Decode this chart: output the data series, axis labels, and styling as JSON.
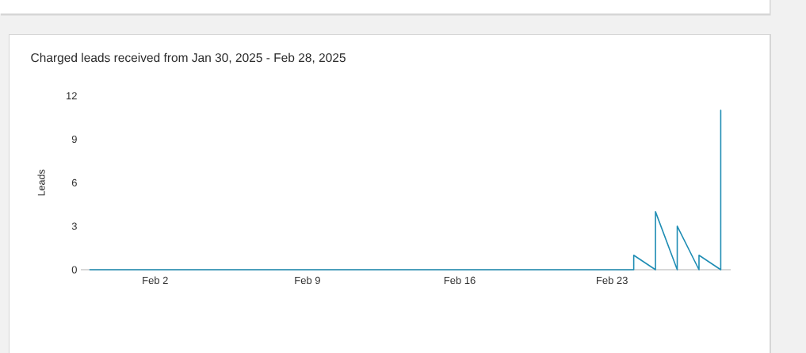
{
  "chart_data": {
    "type": "line",
    "title": "Charged leads received from Jan 30, 2025 - Feb 28, 2025",
    "ylabel": "Leads",
    "x": [
      "2025-01-30",
      "2025-01-31",
      "2025-02-01",
      "2025-02-02",
      "2025-02-03",
      "2025-02-04",
      "2025-02-05",
      "2025-02-06",
      "2025-02-07",
      "2025-02-08",
      "2025-02-09",
      "2025-02-10",
      "2025-02-11",
      "2025-02-12",
      "2025-02-13",
      "2025-02-14",
      "2025-02-15",
      "2025-02-16",
      "2025-02-17",
      "2025-02-18",
      "2025-02-19",
      "2025-02-20",
      "2025-02-21",
      "2025-02-22",
      "2025-02-23",
      "2025-02-24",
      "2025-02-24",
      "2025-02-25",
      "2025-02-25",
      "2025-02-26",
      "2025-02-26",
      "2025-02-27",
      "2025-02-27",
      "2025-02-28",
      "2025-02-28"
    ],
    "series": [
      {
        "color": "#1f8db4",
        "values": [
          0,
          0,
          0,
          0,
          0,
          0,
          0,
          0,
          0,
          0,
          0,
          0,
          0,
          0,
          0,
          0,
          0,
          0,
          0,
          0,
          0,
          0,
          0,
          0,
          0,
          0,
          1,
          0,
          4,
          0,
          3,
          0,
          1,
          0,
          11
        ]
      }
    ],
    "xlim": [
      "2025-01-29T14:00",
      "2025-02-28T11:00"
    ],
    "ylim": [
      0,
      12
    ],
    "xticks": [
      {
        "value": "2025-02-02",
        "label": "Feb 2"
      },
      {
        "value": "2025-02-09",
        "label": "Feb 9"
      },
      {
        "value": "2025-02-16",
        "label": "Feb 16"
      },
      {
        "value": "2025-02-23",
        "label": "Feb 23"
      }
    ],
    "yticks": [
      0,
      3,
      6,
      9,
      12
    ],
    "marker": "none",
    "line_style": "solid"
  }
}
